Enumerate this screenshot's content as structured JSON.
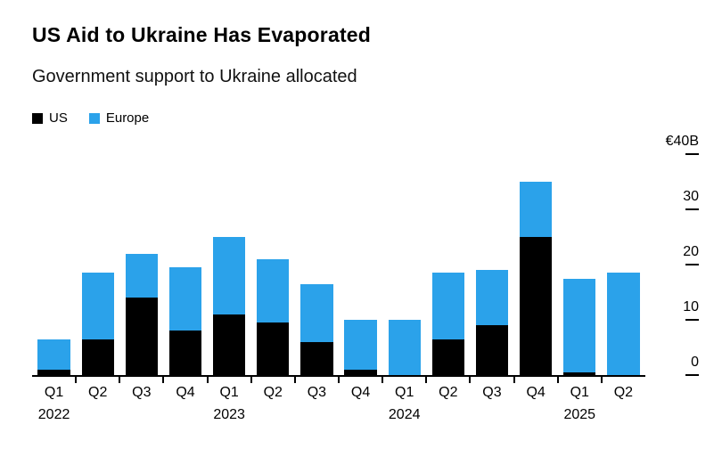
{
  "page": {
    "title": "US Aid to Ukraine Has Evaporated",
    "subtitle": "Government support to Ukraine allocated"
  },
  "chart_data": {
    "type": "bar",
    "stacked": true,
    "title": "US Aid to Ukraine Has Evaporated",
    "subtitle": "Government support to Ukraine allocated",
    "unit": "EUR billions",
    "categories": [
      "Q1",
      "Q2",
      "Q3",
      "Q4",
      "Q1",
      "Q2",
      "Q3",
      "Q4",
      "Q1",
      "Q2",
      "Q3",
      "Q4",
      "Q1",
      "Q2"
    ],
    "year_labels": [
      {
        "index": 0,
        "label": "2022"
      },
      {
        "index": 4,
        "label": "2023"
      },
      {
        "index": 8,
        "label": "2024"
      },
      {
        "index": 12,
        "label": "2025"
      }
    ],
    "series": [
      {
        "name": "US",
        "color": "#000000",
        "values": [
          1,
          6.5,
          14,
          8,
          11,
          9.5,
          6,
          1,
          0,
          6.5,
          9,
          25,
          0.5,
          0
        ]
      },
      {
        "name": "Europe",
        "color": "#2BA2EA",
        "values": [
          5.5,
          12,
          8,
          11.5,
          14,
          11.5,
          10.5,
          9,
          10,
          12,
          10,
          10,
          17,
          18.5
        ]
      }
    ],
    "ylim": [
      0,
      40
    ],
    "yticks": [
      0,
      10,
      20,
      30,
      40
    ],
    "ytick_labels": [
      "0",
      "10",
      "20",
      "30",
      "€40B"
    ],
    "legend_position": "top-left",
    "grid": false,
    "axis_color": "#000000",
    "background": "#ffffff"
  }
}
